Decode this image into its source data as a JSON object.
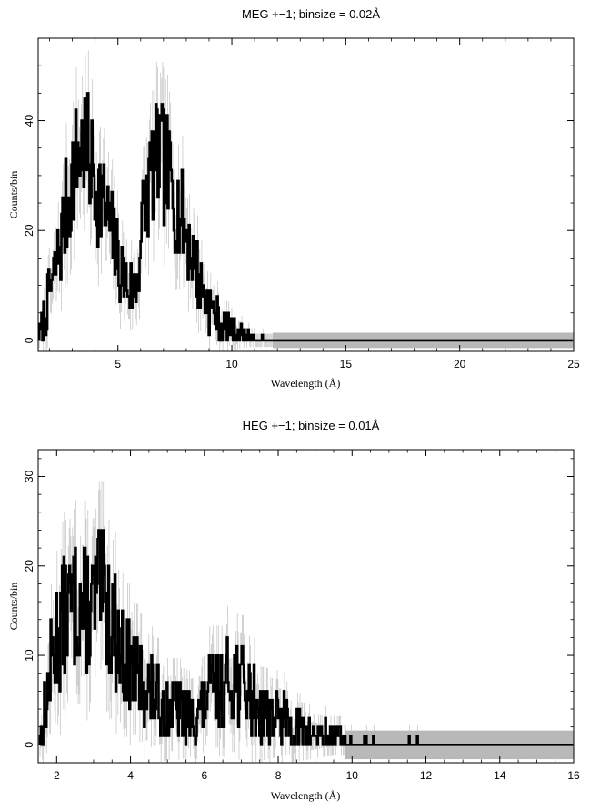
{
  "chart_data": [
    {
      "type": "line",
      "title": "MEG +−1; binsize = 0.02Å",
      "xlabel": "Wavelength (Å)",
      "ylabel": "Counts/bin",
      "xlim": [
        1.5,
        25
      ],
      "ylim": [
        -2,
        55
      ],
      "xticks": [
        5,
        10,
        15,
        20,
        25
      ],
      "yticks": [
        0,
        20,
        40
      ],
      "grid": false,
      "series": [
        {
          "x": [
            1.6,
            2.0,
            2.4,
            2.8,
            3.2,
            3.5,
            3.8,
            4.2,
            4.6,
            5.0,
            5.4,
            5.8,
            6.2,
            6.6,
            6.9,
            7.2,
            7.6,
            8.0,
            8.4,
            8.8,
            9.2,
            9.6,
            10.0,
            10.5,
            11.0,
            12.0,
            14.0,
            17.0,
            20.0,
            25.0
          ],
          "y": [
            1,
            8,
            15,
            25,
            33,
            36,
            32,
            27,
            22,
            15,
            10,
            9,
            25,
            32,
            33,
            30,
            25,
            20,
            14,
            8,
            5,
            3,
            2,
            1,
            0.5,
            0,
            0,
            0,
            0,
            0
          ]
        }
      ]
    },
    {
      "type": "line",
      "title": "HEG +−1; binsize = 0.01Å",
      "xlabel": "Wavelength (Å)",
      "ylabel": "Counts/bin",
      "xlim": [
        1.5,
        16
      ],
      "ylim": [
        -2,
        33
      ],
      "xticks": [
        2,
        4,
        6,
        8,
        10,
        12,
        14,
        16
      ],
      "yticks": [
        0,
        10,
        20,
        30
      ],
      "grid": false,
      "series": [
        {
          "x": [
            1.6,
            1.8,
            2.0,
            2.3,
            2.6,
            2.9,
            3.2,
            3.5,
            3.8,
            4.1,
            4.4,
            4.7,
            5.0,
            5.3,
            5.6,
            5.9,
            6.2,
            6.5,
            6.8,
            7.0,
            7.3,
            7.6,
            8.0,
            8.4,
            8.8,
            9.2,
            10.0,
            11.0,
            12.0,
            13.0,
            16.0
          ],
          "y": [
            1,
            7,
            12,
            15,
            16,
            15,
            17,
            14,
            10,
            8,
            7,
            5,
            4,
            4,
            3,
            4,
            6,
            6,
            8,
            7,
            5,
            4,
            3,
            2,
            1.5,
            1,
            0.5,
            0.2,
            0,
            0,
            0
          ]
        }
      ]
    }
  ]
}
